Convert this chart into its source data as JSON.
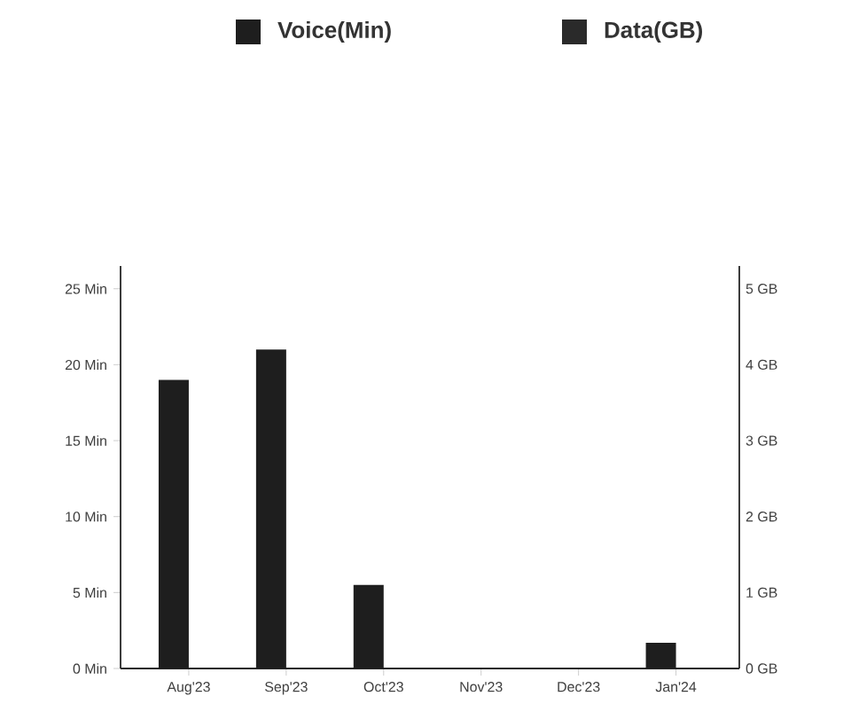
{
  "chart_data": {
    "type": "bar",
    "categories": [
      "Aug'23",
      "Sep'23",
      "Oct'23",
      "Nov'23",
      "Dec'23",
      "Jan'24"
    ],
    "series": [
      {
        "name": "Voice(Min)",
        "color": "#1e1e1e",
        "values": [
          19,
          21,
          5.5,
          0,
          0,
          1.7
        ]
      },
      {
        "name": "Data(GB)",
        "color": "#2a2a2a",
        "axis": "y2",
        "values": [
          0,
          0,
          0,
          0,
          0,
          0
        ]
      }
    ],
    "ylim": [
      0,
      26.5
    ],
    "yticks": [
      {
        "value": 0,
        "label": "0 Min"
      },
      {
        "value": 5,
        "label": "5 Min"
      },
      {
        "value": 10,
        "label": "10 Min"
      },
      {
        "value": 15,
        "label": "15 Min"
      },
      {
        "value": 20,
        "label": "20 Min"
      },
      {
        "value": 25,
        "label": "25 Min"
      }
    ],
    "y2lim": [
      0,
      5.3
    ],
    "y2ticks": [
      {
        "value": 0,
        "label": "0 GB"
      },
      {
        "value": 1,
        "label": "1 GB"
      },
      {
        "value": 2,
        "label": "2 GB"
      },
      {
        "value": 3,
        "label": "3 GB"
      },
      {
        "value": 4,
        "label": "4 GB"
      },
      {
        "value": 5,
        "label": "5 GB"
      }
    ],
    "legend": "top",
    "grid": false
  }
}
